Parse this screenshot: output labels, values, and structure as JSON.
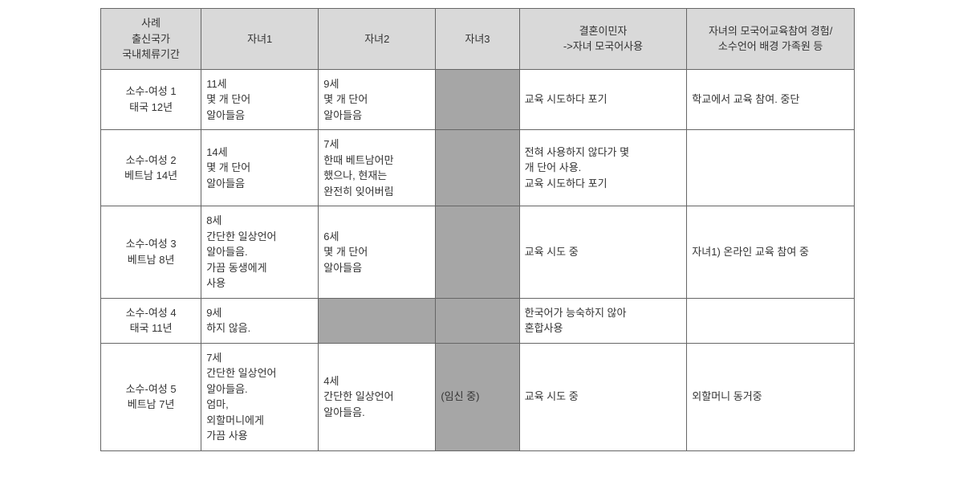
{
  "table": {
    "headers": {
      "case": "사례\n출신국가\n국내체류기간",
      "child1": "자녀1",
      "child2": "자녀2",
      "child3": "자녀3",
      "immigrant": "결혼이민자\n->자녀 모국어사용",
      "experience": "자녀의 모국어교육참여 경험/\n소수언어 배경 가족원 등"
    },
    "rows": [
      {
        "case": "소수-여성 1\n태국 12년",
        "child1": "11세\n몇 개 단어\n알아들음",
        "child2": "9세\n몇 개 단어\n알아들음",
        "child3": "",
        "child3_shaded": true,
        "immigrant": "교육 시도하다 포기",
        "experience": "학교에서 교육 참여. 중단"
      },
      {
        "case": "소수-여성 2\n베트남 14년",
        "child1": "14세\n몇 개 단어\n알아들음",
        "child2": "7세\n한때 베트남어만\n했으나, 현재는\n완전히 잊어버림",
        "child3": "",
        "child3_shaded": true,
        "immigrant": "전혀 사용하지 않다가 몇\n개 단어 사용.\n교육 시도하다 포기",
        "experience": ""
      },
      {
        "case": "소수-여성 3\n베트남 8년",
        "child1": "8세\n간단한 일상언어\n알아들음.\n가끔 동생에게\n사용",
        "child2": "6세\n몇 개 단어\n알아들음",
        "child3": "",
        "child3_shaded": true,
        "immigrant": "교육 시도 중",
        "experience": "자녀1) 온라인 교육 참여 중"
      },
      {
        "case": "소수-여성 4\n태국 11년",
        "child1": "9세\n하지 않음.",
        "child2": "",
        "child2_shaded": true,
        "child3": "",
        "child3_shaded": true,
        "immigrant": "한국어가 능숙하지 않아\n혼합사용",
        "experience": ""
      },
      {
        "case": "소수-여성 5\n베트남 7년",
        "child1": "7세\n간단한 일상언어\n알아들음.\n엄마,\n외할머니에게\n가끔 사용",
        "child2": "4세\n간단한 일상언어\n알아들음.",
        "child3": "(임신 중)",
        "child3_shaded": true,
        "immigrant": "교육 시도 중",
        "experience": "외할머니 동거중"
      }
    ]
  }
}
